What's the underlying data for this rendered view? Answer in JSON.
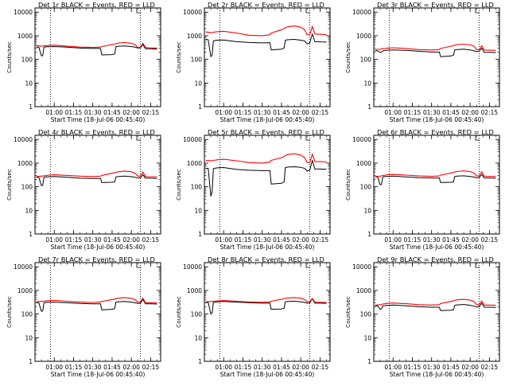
{
  "colors": {
    "events": "#000000",
    "lld": "#ff0000",
    "axis": "#000000",
    "background": "#ffffff"
  },
  "common": {
    "ylabel": "Counts/sec",
    "xlabel": "Start Time (18-Jul-06 00:45:40)",
    "x_ticks": [
      "01:00",
      "01:15",
      "01:30",
      "01:45",
      "02:00",
      "02:15"
    ],
    "y_ticks": [
      "1",
      "10",
      "100",
      "1000",
      "10000"
    ]
  },
  "chart_data": [
    {
      "type": "line",
      "title": "Det 1r BLACK = Events, RED = LLD",
      "x_range_hours": [
        0.75,
        2.38
      ],
      "ylim": [
        1,
        15000
      ],
      "y_scale": "log",
      "dotted_lines": [
        "00:57",
        "02:07"
      ],
      "x": [
        "00:46",
        "00:48",
        "00:50",
        "00:51",
        "00:52",
        "00:54",
        "00:56",
        "01:00",
        "01:10",
        "01:20",
        "01:30",
        "01:36",
        "01:37",
        "01:45",
        "01:47",
        "01:48",
        "01:50",
        "01:55",
        "02:00",
        "02:03",
        "02:05",
        "02:07",
        "02:09",
        "02:11",
        "02:13",
        "02:15",
        "02:20"
      ],
      "series": [
        {
          "name": "Events",
          "values": [
            330,
            330,
            140,
            145,
            330,
            340,
            340,
            350,
            330,
            300,
            290,
            290,
            155,
            160,
            170,
            350,
            360,
            370,
            350,
            330,
            300,
            310,
            420,
            280,
            280,
            280,
            270
          ]
        },
        {
          "name": "LLD",
          "values": [
            380,
            370,
            365,
            365,
            375,
            380,
            390,
            400,
            360,
            330,
            320,
            330,
            350,
            420,
            440,
            460,
            490,
            510,
            480,
            420,
            320,
            320,
            480,
            320,
            310,
            305,
            300
          ]
        }
      ]
    },
    {
      "type": "line",
      "title": "Det 2r BLACK = Events, RED = LLD",
      "x_range_hours": [
        0.75,
        2.38
      ],
      "ylim": [
        1,
        15000
      ],
      "y_scale": "log",
      "dotted_lines": [
        "00:57",
        "02:07"
      ],
      "x": [
        "00:46",
        "00:48",
        "00:50",
        "00:51",
        "00:52",
        "00:54",
        "00:56",
        "01:00",
        "01:10",
        "01:20",
        "01:30",
        "01:36",
        "01:37",
        "01:45",
        "01:47",
        "01:48",
        "01:50",
        "01:55",
        "02:00",
        "02:03",
        "02:05",
        "02:07",
        "02:09",
        "02:11",
        "02:13",
        "02:15",
        "02:20"
      ],
      "series": [
        {
          "name": "Events",
          "values": [
            700,
            680,
            130,
            150,
            600,
            650,
            650,
            660,
            560,
            520,
            500,
            510,
            250,
            270,
            300,
            650,
            680,
            700,
            650,
            600,
            450,
            500,
            1200,
            560,
            560,
            550,
            540
          ]
        },
        {
          "name": "LLD",
          "values": [
            1450,
            1400,
            1350,
            1350,
            1400,
            1450,
            1500,
            1550,
            1300,
            1050,
            1000,
            1100,
            1300,
            1800,
            2000,
            2200,
            2400,
            2600,
            2300,
            1800,
            1100,
            1100,
            2500,
            1200,
            1150,
            1150,
            1100
          ]
        }
      ]
    },
    {
      "type": "line",
      "title": "Det 3r BLACK = Events, RED = LLD",
      "x_range_hours": [
        0.75,
        2.38
      ],
      "ylim": [
        1,
        15000
      ],
      "y_scale": "log",
      "dotted_lines": [
        "00:57",
        "02:07"
      ],
      "x": [
        "00:46",
        "00:48",
        "00:50",
        "00:51",
        "00:52",
        "00:54",
        "00:56",
        "01:00",
        "01:10",
        "01:20",
        "01:30",
        "01:36",
        "01:37",
        "01:45",
        "01:47",
        "01:48",
        "01:50",
        "01:55",
        "02:00",
        "02:03",
        "02:05",
        "02:07",
        "02:09",
        "02:11",
        "02:13",
        "02:15",
        "02:20"
      ],
      "series": [
        {
          "name": "Events",
          "values": [
            230,
            230,
            200,
            200,
            230,
            240,
            245,
            250,
            240,
            220,
            205,
            205,
            130,
            140,
            150,
            250,
            260,
            270,
            250,
            230,
            215,
            220,
            300,
            200,
            200,
            200,
            195
          ]
        },
        {
          "name": "LLD",
          "values": [
            260,
            265,
            270,
            275,
            285,
            290,
            300,
            310,
            290,
            260,
            250,
            260,
            290,
            360,
            380,
            400,
            420,
            440,
            410,
            360,
            260,
            260,
            380,
            250,
            245,
            245,
            240
          ]
        }
      ]
    },
    {
      "type": "line",
      "title": "Det 4r BLACK = Events, RED = LLD",
      "x_range_hours": [
        0.75,
        2.38
      ],
      "ylim": [
        1,
        15000
      ],
      "y_scale": "log",
      "dotted_lines": [
        "00:57",
        "02:07"
      ],
      "x": [
        "00:46",
        "00:48",
        "00:50",
        "00:51",
        "00:52",
        "00:54",
        "00:56",
        "01:00",
        "01:10",
        "01:20",
        "01:30",
        "01:36",
        "01:37",
        "01:45",
        "01:47",
        "01:48",
        "01:50",
        "01:55",
        "02:00",
        "02:03",
        "02:05",
        "02:07",
        "02:09",
        "02:11",
        "02:13",
        "02:15",
        "02:20"
      ],
      "series": [
        {
          "name": "Events",
          "values": [
            250,
            250,
            110,
            115,
            250,
            260,
            265,
            270,
            250,
            230,
            225,
            225,
            150,
            155,
            160,
            260,
            270,
            280,
            265,
            250,
            235,
            240,
            320,
            230,
            230,
            230,
            225
          ]
        },
        {
          "name": "LLD",
          "values": [
            270,
            275,
            280,
            285,
            290,
            300,
            310,
            320,
            300,
            280,
            270,
            280,
            300,
            370,
            390,
            410,
            430,
            460,
            430,
            370,
            280,
            280,
            420,
            270,
            265,
            265,
            260
          ]
        }
      ]
    },
    {
      "type": "line",
      "title": "Det 5r BLACK = Events, RED = LLD",
      "x_range_hours": [
        0.75,
        2.38
      ],
      "ylim": [
        1,
        15000
      ],
      "y_scale": "log",
      "dotted_lines": [
        "00:57",
        "02:07"
      ],
      "x": [
        "00:46",
        "00:48",
        "00:50",
        "00:51",
        "00:52",
        "00:54",
        "00:56",
        "01:00",
        "01:10",
        "01:20",
        "01:30",
        "01:36",
        "01:37",
        "01:45",
        "01:47",
        "01:48",
        "01:50",
        "01:55",
        "02:00",
        "02:03",
        "02:05",
        "02:07",
        "02:09",
        "02:11",
        "02:13",
        "02:15",
        "02:20"
      ],
      "series": [
        {
          "name": "Events",
          "values": [
            600,
            600,
            40,
            60,
            580,
            620,
            640,
            650,
            540,
            500,
            480,
            480,
            130,
            140,
            160,
            650,
            680,
            700,
            660,
            600,
            460,
            500,
            1300,
            560,
            560,
            560,
            550
          ]
        },
        {
          "name": "LLD",
          "values": [
            1300,
            1280,
            1260,
            1260,
            1300,
            1350,
            1400,
            1450,
            1250,
            1050,
            1000,
            1100,
            1300,
            1700,
            1900,
            2100,
            2300,
            2500,
            2200,
            1700,
            1050,
            1050,
            2400,
            1150,
            1150,
            1150,
            1120
          ]
        }
      ]
    },
    {
      "type": "line",
      "title": "Det 6r BLACK = Events, RED = LLD",
      "x_range_hours": [
        0.75,
        2.38
      ],
      "ylim": [
        1,
        15000
      ],
      "y_scale": "log",
      "dotted_lines": [
        "00:57",
        "02:07"
      ],
      "x": [
        "00:46",
        "00:48",
        "00:50",
        "00:51",
        "00:52",
        "00:54",
        "00:56",
        "01:00",
        "01:10",
        "01:20",
        "01:30",
        "01:36",
        "01:37",
        "01:45",
        "01:47",
        "01:48",
        "01:50",
        "01:55",
        "02:00",
        "02:03",
        "02:05",
        "02:07",
        "02:09",
        "02:11",
        "02:13",
        "02:15",
        "02:20"
      ],
      "series": [
        {
          "name": "Events",
          "values": [
            260,
            260,
            120,
            125,
            260,
            270,
            275,
            280,
            260,
            240,
            235,
            235,
            150,
            155,
            160,
            270,
            280,
            290,
            270,
            255,
            240,
            245,
            330,
            235,
            235,
            235,
            230
          ]
        },
        {
          "name": "LLD",
          "values": [
            270,
            275,
            280,
            285,
            300,
            310,
            320,
            330,
            310,
            285,
            275,
            285,
            310,
            380,
            400,
            420,
            440,
            470,
            440,
            380,
            285,
            285,
            430,
            280,
            275,
            275,
            270
          ]
        }
      ]
    },
    {
      "type": "line",
      "title": "Det 7r BLACK = Events, RED = LLD",
      "x_range_hours": [
        0.75,
        2.38
      ],
      "ylim": [
        1,
        15000
      ],
      "y_scale": "log",
      "dotted_lines": [
        "00:57",
        "02:07"
      ],
      "x": [
        "00:46",
        "00:48",
        "00:50",
        "00:51",
        "00:52",
        "00:54",
        "00:56",
        "01:00",
        "01:10",
        "01:20",
        "01:30",
        "01:36",
        "01:37",
        "01:45",
        "01:47",
        "01:48",
        "01:50",
        "01:55",
        "02:00",
        "02:03",
        "02:05",
        "02:07",
        "02:09",
        "02:11",
        "02:13",
        "02:15",
        "02:20"
      ],
      "series": [
        {
          "name": "Events",
          "values": [
            300,
            300,
            130,
            135,
            300,
            310,
            315,
            320,
            300,
            280,
            270,
            270,
            150,
            160,
            170,
            320,
            330,
            340,
            320,
            300,
            280,
            285,
            420,
            270,
            270,
            270,
            265
          ]
        },
        {
          "name": "LLD",
          "values": [
            340,
            340,
            345,
            345,
            350,
            360,
            370,
            380,
            350,
            320,
            310,
            320,
            340,
            410,
            430,
            450,
            470,
            500,
            460,
            400,
            320,
            320,
            470,
            300,
            300,
            300,
            295
          ]
        }
      ]
    },
    {
      "type": "line",
      "title": "Det 8r BLACK = Events, RED = LLD",
      "x_range_hours": [
        0.75,
        2.38
      ],
      "ylim": [
        1,
        15000
      ],
      "y_scale": "log",
      "dotted_lines": [
        "00:57",
        "02:07"
      ],
      "x": [
        "00:46",
        "00:48",
        "00:50",
        "00:51",
        "00:52",
        "00:54",
        "00:56",
        "01:00",
        "01:10",
        "01:20",
        "01:30",
        "01:36",
        "01:37",
        "01:45",
        "01:47",
        "01:48",
        "01:50",
        "01:55",
        "02:00",
        "02:03",
        "02:05",
        "02:07",
        "02:09",
        "02:11",
        "02:13",
        "02:15",
        "02:20"
      ],
      "series": [
        {
          "name": "Events",
          "values": [
            310,
            310,
            100,
            110,
            310,
            320,
            330,
            340,
            320,
            300,
            290,
            290,
            160,
            165,
            175,
            330,
            340,
            350,
            330,
            310,
            290,
            295,
            450,
            290,
            290,
            290,
            285
          ]
        },
        {
          "name": "LLD",
          "values": [
            330,
            335,
            340,
            340,
            345,
            355,
            365,
            375,
            350,
            325,
            315,
            325,
            350,
            420,
            440,
            460,
            480,
            500,
            470,
            410,
            330,
            330,
            460,
            320,
            315,
            315,
            310
          ]
        }
      ]
    },
    {
      "type": "line",
      "title": "Det 9r BLACK = Events, RED = LLD",
      "x_range_hours": [
        0.75,
        2.38
      ],
      "ylim": [
        1,
        15000
      ],
      "y_scale": "log",
      "dotted_lines": [
        "00:57",
        "02:07"
      ],
      "x": [
        "00:46",
        "00:48",
        "00:50",
        "00:51",
        "00:52",
        "00:54",
        "00:56",
        "01:00",
        "01:10",
        "01:20",
        "01:30",
        "01:36",
        "01:37",
        "01:45",
        "01:47",
        "01:48",
        "01:50",
        "01:55",
        "02:00",
        "02:03",
        "02:05",
        "02:07",
        "02:09",
        "02:11",
        "02:13",
        "02:15",
        "02:20"
      ],
      "series": [
        {
          "name": "Events",
          "values": [
            220,
            220,
            160,
            165,
            225,
            230,
            235,
            240,
            225,
            205,
            195,
            195,
            140,
            145,
            150,
            235,
            245,
            255,
            235,
            215,
            200,
            205,
            290,
            195,
            195,
            195,
            190
          ]
        },
        {
          "name": "LLD",
          "values": [
            240,
            245,
            250,
            255,
            265,
            275,
            285,
            295,
            275,
            250,
            240,
            250,
            280,
            340,
            360,
            380,
            400,
            420,
            390,
            340,
            250,
            250,
            360,
            240,
            240,
            240,
            235
          ]
        }
      ]
    }
  ]
}
